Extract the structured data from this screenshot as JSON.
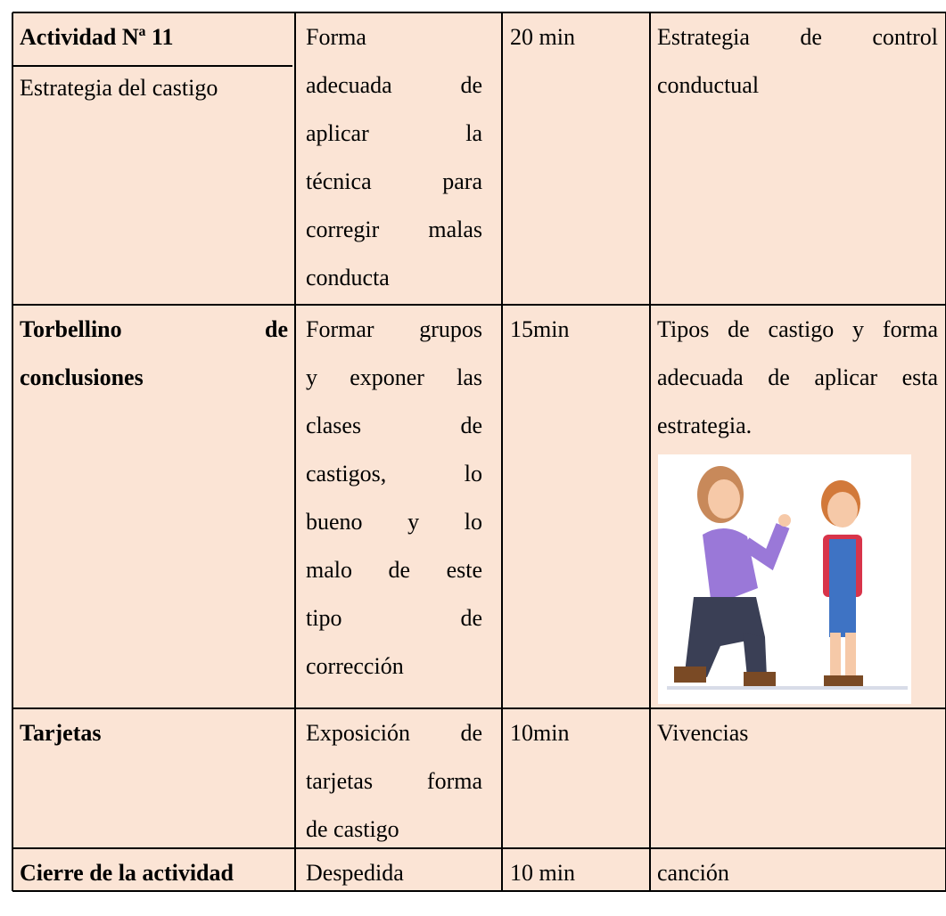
{
  "table": {
    "rows": [
      {
        "cells": [
          {
            "paragraphs": [
              {
                "bold": true,
                "lines": [
                  "Actividad Nª 11"
                ]
              },
              {
                "bold": false,
                "lines": [
                  "Estrategia del castigo"
                ]
              }
            ]
          },
          {
            "paragraphs": [
              {
                "bold": false,
                "lines": [
                  "Forma",
                  "adecuada de",
                  "aplicar la",
                  "técnica para",
                  "corregir malas",
                  "conducta"
                ]
              }
            ]
          },
          {
            "paragraphs": [
              {
                "bold": false,
                "lines": [
                  "20 min"
                ]
              }
            ]
          },
          {
            "paragraphs": [
              {
                "bold": false,
                "lines": [
                  "Estrategia de control",
                  "conductual"
                ]
              }
            ]
          }
        ]
      },
      {
        "cells": [
          {
            "paragraphs": [
              {
                "bold": true,
                "lines": [
                  "Torbellino de",
                  "conclusiones"
                ]
              }
            ]
          },
          {
            "paragraphs": [
              {
                "bold": false,
                "lines": [
                  "Formar grupos",
                  "y exponer las",
                  "clases de",
                  "castigos, lo",
                  "bueno y lo",
                  "malo de este",
                  "tipo de",
                  "corrección"
                ]
              }
            ]
          },
          {
            "paragraphs": [
              {
                "bold": false,
                "lines": [
                  "15min"
                ]
              }
            ]
          },
          {
            "paragraphs": [
              {
                "bold": false,
                "lines": [
                  "Tipos de castigo y forma",
                  "adecuada de aplicar esta",
                  "estrategia."
                ]
              }
            ]
          }
        ]
      },
      {
        "cells": [
          {
            "paragraphs": [
              {
                "bold": true,
                "lines": [
                  "Tarjetas"
                ]
              }
            ]
          },
          {
            "paragraphs": [
              {
                "bold": false,
                "lines": [
                  "Exposición de",
                  "tarjetas forma",
                  "de castigo"
                ]
              }
            ]
          },
          {
            "paragraphs": [
              {
                "bold": false,
                "lines": [
                  "10min"
                ]
              }
            ]
          },
          {
            "paragraphs": [
              {
                "bold": false,
                "lines": [
                  "Vivencias"
                ]
              }
            ]
          }
        ]
      },
      {
        "cells": [
          {
            "paragraphs": [
              {
                "bold": true,
                "lines": [
                  "Cierre de la actividad"
                ]
              }
            ]
          },
          {
            "paragraphs": [
              {
                "bold": false,
                "lines": [
                  "Despedida"
                ]
              }
            ]
          },
          {
            "paragraphs": [
              {
                "bold": false,
                "lines": [
                  "10 min"
                ]
              }
            ]
          },
          {
            "paragraphs": [
              {
                "bold": false,
                "lines": [
                  "canción"
                ]
              }
            ]
          }
        ]
      }
    ]
  }
}
